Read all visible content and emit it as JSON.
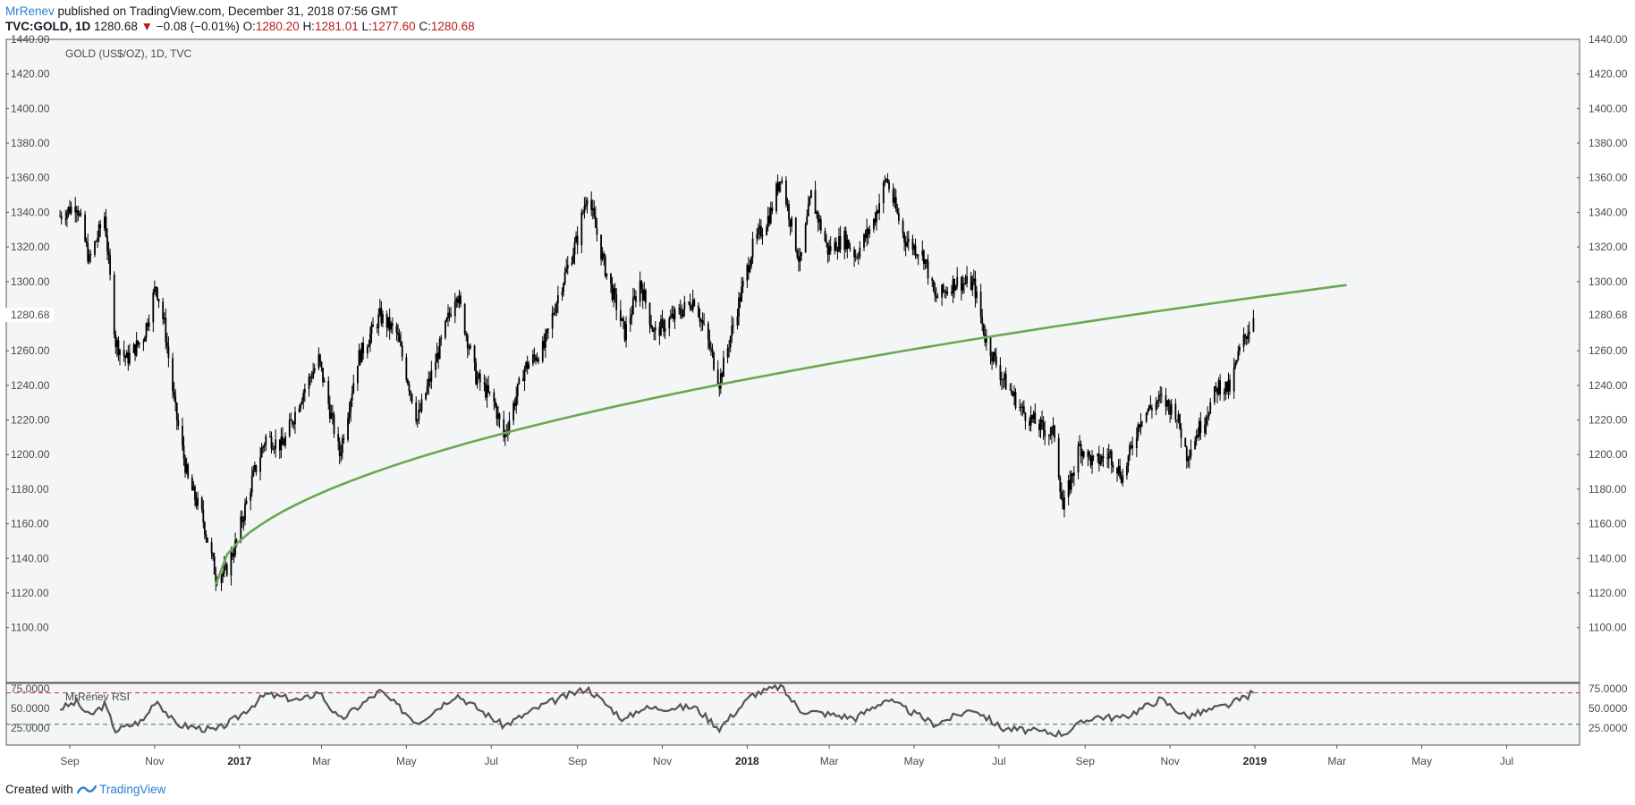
{
  "header": {
    "author": "MrRenev",
    "published": "published on TradingView.com, December 31, 2018 07:56 GMT",
    "symbol": "TVC:GOLD, 1D",
    "last": "1280.68",
    "change": "−0.08 (−0.01%)",
    "o_label": "O:",
    "o_value": "1280.20",
    "h_label": "H:",
    "h_value": "1281.01",
    "l_label": "L:",
    "l_value": "1277.60",
    "c_label": "C:",
    "c_value": "1280.68"
  },
  "footer": {
    "created_with": "Created with",
    "brand": "TradingView"
  },
  "colors": {
    "pane_bg": "#f4f5f7",
    "candle": "#000000",
    "trend": "#6aa84f",
    "rsi_line": "#555555",
    "rsi_upper": "#d32f2f",
    "rsi_lower": "#3a7d2e",
    "price_badge": "#ffffff"
  },
  "chart_data": {
    "type": "candlestick",
    "title": "GOLD (US$/OZ), 1D, TVC",
    "price_axis": {
      "ylim": [
        1090,
        1440
      ],
      "ticks": [
        "1440.00",
        "1420.00",
        "1400.00",
        "1380.00",
        "1360.00",
        "1340.00",
        "1320.00",
        "1300.00",
        "1260.00",
        "1240.00",
        "1220.00",
        "1200.00",
        "1180.00",
        "1160.00",
        "1140.00",
        "1120.00",
        "1100.00"
      ],
      "last_price_label": "1280.68"
    },
    "time_axis": {
      "labels": [
        "Sep",
        "Nov",
        "2017",
        "Mar",
        "May",
        "Jul",
        "Sep",
        "Nov",
        "2018",
        "Mar",
        "May",
        "Jul",
        "Sep",
        "Nov",
        "2019",
        "Mar",
        "May",
        "Jul"
      ],
      "year_labels": [
        "2017",
        "2018",
        "2019"
      ]
    },
    "price_path": [
      [
        "2016-08-25",
        1338
      ],
      [
        "2016-09-06",
        1345
      ],
      [
        "2016-09-15",
        1312
      ],
      [
        "2016-09-26",
        1338
      ],
      [
        "2016-10-04",
        1265
      ],
      [
        "2016-10-12",
        1255
      ],
      [
        "2016-10-24",
        1268
      ],
      [
        "2016-11-02",
        1298
      ],
      [
        "2016-11-08",
        1275
      ],
      [
        "2016-11-16",
        1225
      ],
      [
        "2016-11-25",
        1185
      ],
      [
        "2016-12-05",
        1165
      ],
      [
        "2016-12-15",
        1130
      ],
      [
        "2016-12-22",
        1132
      ],
      [
        "2016-12-30",
        1150
      ],
      [
        "2017-01-10",
        1185
      ],
      [
        "2017-01-20",
        1210
      ],
      [
        "2017-02-01",
        1205
      ],
      [
        "2017-02-15",
        1235
      ],
      [
        "2017-02-27",
        1255
      ],
      [
        "2017-03-14",
        1200
      ],
      [
        "2017-03-27",
        1255
      ],
      [
        "2017-04-12",
        1280
      ],
      [
        "2017-04-24",
        1270
      ],
      [
        "2017-05-09",
        1220
      ],
      [
        "2017-05-25",
        1262
      ],
      [
        "2017-06-06",
        1295
      ],
      [
        "2017-06-20",
        1245
      ],
      [
        "2017-07-03",
        1230
      ],
      [
        "2017-07-10",
        1210
      ],
      [
        "2017-07-25",
        1250
      ],
      [
        "2017-08-08",
        1262
      ],
      [
        "2017-08-18",
        1292
      ],
      [
        "2017-09-01",
        1325
      ],
      [
        "2017-09-08",
        1352
      ],
      [
        "2017-09-20",
        1310
      ],
      [
        "2017-10-05",
        1270
      ],
      [
        "2017-10-16",
        1300
      ],
      [
        "2017-10-26",
        1270
      ],
      [
        "2017-11-13",
        1282
      ],
      [
        "2017-11-24",
        1290
      ],
      [
        "2017-12-04",
        1265
      ],
      [
        "2017-12-12",
        1242
      ],
      [
        "2017-12-22",
        1275
      ],
      [
        "2018-01-05",
        1320
      ],
      [
        "2018-01-18",
        1340
      ],
      [
        "2018-01-25",
        1362
      ],
      [
        "2018-02-08",
        1310
      ],
      [
        "2018-02-16",
        1350
      ],
      [
        "2018-02-28",
        1318
      ],
      [
        "2018-03-12",
        1325
      ],
      [
        "2018-03-20",
        1315
      ],
      [
        "2018-04-02",
        1335
      ],
      [
        "2018-04-11",
        1360
      ],
      [
        "2018-04-24",
        1325
      ],
      [
        "2018-05-08",
        1315
      ],
      [
        "2018-05-16",
        1290
      ],
      [
        "2018-05-31",
        1300
      ],
      [
        "2018-06-13",
        1298
      ],
      [
        "2018-06-21",
        1268
      ],
      [
        "2018-07-03",
        1245
      ],
      [
        "2018-07-18",
        1225
      ],
      [
        "2018-08-01",
        1215
      ],
      [
        "2018-08-10",
        1212
      ],
      [
        "2018-08-16",
        1168
      ],
      [
        "2018-08-28",
        1205
      ],
      [
        "2018-09-07",
        1195
      ],
      [
        "2018-09-19",
        1200
      ],
      [
        "2018-09-28",
        1187
      ],
      [
        "2018-10-11",
        1222
      ],
      [
        "2018-10-25",
        1232
      ],
      [
        "2018-11-05",
        1225
      ],
      [
        "2018-11-13",
        1200
      ],
      [
        "2018-11-26",
        1222
      ],
      [
        "2018-12-06",
        1240
      ],
      [
        "2018-12-14",
        1238
      ],
      [
        "2018-12-21",
        1260
      ],
      [
        "2018-12-31",
        1280
      ]
    ],
    "trend_line": {
      "label": "",
      "start": [
        "2016-12-15",
        1125
      ],
      "passes_through": [
        [
          "2017-07-10",
          1206
        ],
        [
          "2017-12-12",
          1238
        ],
        [
          "2018-06-21",
          1266
        ]
      ],
      "end": [
        "2019-03-08",
        1298
      ]
    },
    "rsi": {
      "label": "MrRenev RSI",
      "ticks": [
        "75.0000",
        "50.0000",
        "25.0000"
      ],
      "ylim": [
        15,
        82
      ],
      "upper_band": 70,
      "lower_band": 30,
      "path": [
        [
          "2016-08-25",
          50
        ],
        [
          "2016-09-06",
          58
        ],
        [
          "2016-09-15",
          40
        ],
        [
          "2016-09-26",
          55
        ],
        [
          "2016-10-04",
          22
        ],
        [
          "2016-10-24",
          35
        ],
        [
          "2016-11-02",
          62
        ],
        [
          "2016-11-16",
          30
        ],
        [
          "2016-12-15",
          22
        ],
        [
          "2016-12-30",
          38
        ],
        [
          "2017-01-20",
          68
        ],
        [
          "2017-02-15",
          60
        ],
        [
          "2017-02-27",
          72
        ],
        [
          "2017-03-14",
          35
        ],
        [
          "2017-04-12",
          72
        ],
        [
          "2017-05-09",
          32
        ],
        [
          "2017-06-06",
          68
        ],
        [
          "2017-07-10",
          28
        ],
        [
          "2017-08-08",
          55
        ],
        [
          "2017-09-08",
          76
        ],
        [
          "2017-10-05",
          35
        ],
        [
          "2017-10-16",
          50
        ],
        [
          "2017-11-24",
          52
        ],
        [
          "2017-12-12",
          25
        ],
        [
          "2018-01-05",
          68
        ],
        [
          "2018-01-25",
          78
        ],
        [
          "2018-02-08",
          48
        ],
        [
          "2018-03-20",
          38
        ],
        [
          "2018-04-11",
          62
        ],
        [
          "2018-05-16",
          30
        ],
        [
          "2018-06-13",
          50
        ],
        [
          "2018-07-03",
          25
        ],
        [
          "2018-08-16",
          18
        ],
        [
          "2018-09-07",
          40
        ],
        [
          "2018-09-28",
          38
        ],
        [
          "2018-10-25",
          62
        ],
        [
          "2018-11-13",
          40
        ],
        [
          "2018-12-14",
          55
        ],
        [
          "2018-12-31",
          70
        ]
      ]
    }
  }
}
